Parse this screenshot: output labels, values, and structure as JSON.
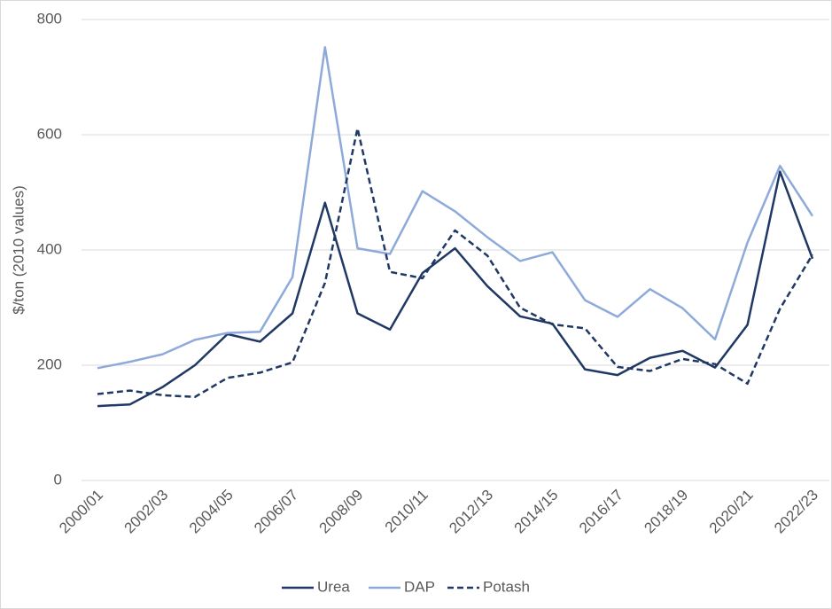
{
  "chart_data": {
    "type": "line",
    "y_label": "$/ton (2010 values)",
    "categories": [
      "2000/01",
      null,
      "2002/03",
      null,
      "2004/05",
      null,
      "2006/07",
      null,
      "2008/09",
      null,
      "2010/11",
      null,
      "2012/13",
      null,
      "2014/15",
      null,
      "2016/17",
      null,
      "2018/19",
      null,
      "2020/21",
      null,
      "2022/23"
    ],
    "series": [
      {
        "name": "Urea",
        "color": "#1f3864",
        "style": "solid",
        "values": [
          129,
          132,
          162,
          200,
          254,
          241,
          290,
          482,
          290,
          262,
          360,
          403,
          337,
          285,
          272,
          193,
          183,
          213,
          225,
          196,
          270,
          536,
          385
        ]
      },
      {
        "name": "DAP",
        "color": "#8eaadb",
        "style": "solid",
        "values": [
          195,
          206,
          219,
          244,
          256,
          258,
          353,
          752,
          403,
          393,
          502,
          467,
          422,
          381,
          396,
          313,
          284,
          332,
          299,
          245,
          413,
          546,
          459
        ]
      },
      {
        "name": "Potash",
        "color": "#1f3864",
        "style": "dashed",
        "values": [
          150,
          156,
          148,
          145,
          178,
          187,
          205,
          343,
          611,
          362,
          351,
          434,
          390,
          300,
          271,
          264,
          197,
          190,
          211,
          202,
          168,
          298,
          392
        ]
      }
    ],
    "ylim": [
      0,
      800
    ],
    "yticks": [
      0,
      200,
      400,
      600,
      800
    ],
    "grid": true,
    "legend": "bottom"
  }
}
